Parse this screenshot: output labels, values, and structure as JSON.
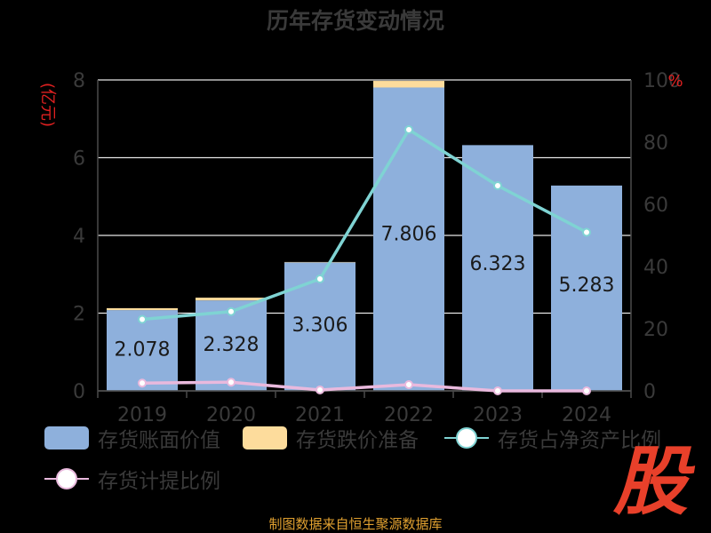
{
  "chart_data": {
    "type": "bar",
    "title": "历年存货变动情况",
    "categories": [
      "2019",
      "2020",
      "2021",
      "2022",
      "2023",
      "2024"
    ],
    "y_left_label": "(亿元)",
    "y_right_label": "%",
    "ylim_left": [
      0,
      8
    ],
    "ylim_right": [
      0,
      100
    ],
    "left_ticks": [
      "0",
      "2",
      "4",
      "6",
      "8"
    ],
    "right_ticks": [
      "0",
      "20",
      "40",
      "60",
      "80",
      "100"
    ],
    "grid": true,
    "series": [
      {
        "name": "存货账面价值",
        "kind": "bar",
        "axis": "left",
        "values": [
          2.078,
          2.328,
          3.306,
          7.806,
          6.323,
          5.283
        ],
        "labels": [
          "2.078",
          "2.328",
          "3.306",
          "7.806",
          "6.323",
          "5.283"
        ]
      },
      {
        "name": "存货跌价准备",
        "kind": "bar-stacked",
        "axis": "left",
        "values": [
          0.05,
          0.07,
          0.01,
          0.17,
          0.0,
          0.0
        ]
      },
      {
        "name": "存货占净资产比例",
        "kind": "line",
        "axis": "right",
        "values": [
          23,
          25.5,
          36,
          84,
          66,
          51
        ]
      },
      {
        "name": "存货计提比例",
        "kind": "line",
        "axis": "right",
        "values": [
          2.5,
          2.8,
          0.3,
          2.0,
          0.0,
          0.0
        ]
      }
    ]
  },
  "colors": {
    "bar_value": "#8eb0dc",
    "bar_provision": "#fddc9c",
    "line_ratio": "#7fd3d3",
    "line_provision": "#e9b9dd",
    "title": "#3a3a3a",
    "axis_text": "#3a3a3a",
    "unit_text": "#e02020"
  },
  "legend": {
    "items": [
      "存货账面价值",
      "存货跌价准备",
      "存货占净资产比例",
      "存货计提比例"
    ]
  },
  "footer": "制图数据来自恒生聚源数据库",
  "logo_text": "股"
}
